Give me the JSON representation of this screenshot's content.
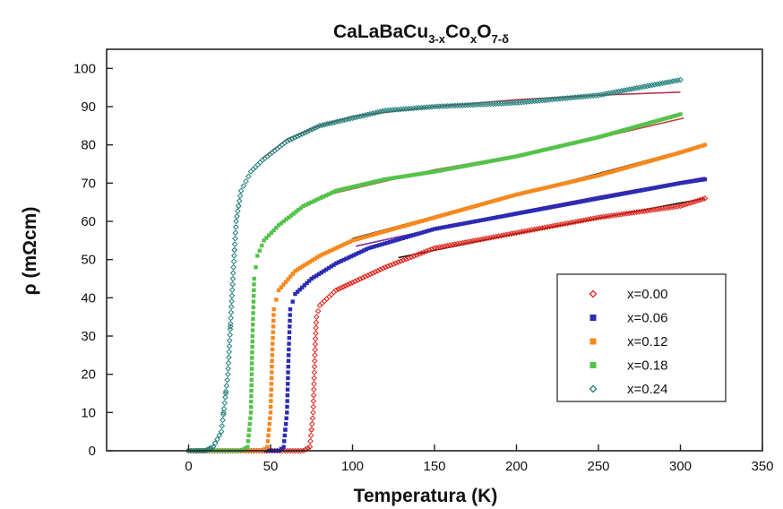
{
  "chart_data": {
    "type": "scatter",
    "title": {
      "base": "CaLaBaCu",
      "sub1": "3-x",
      "mid1": "Co",
      "sub2": "x",
      "mid2": "O",
      "sub3": "7-δ"
    },
    "xlabel": "Temperatura (K)",
    "ylabel": "ρ (mΩcm)",
    "xlim": [
      -50,
      350
    ],
    "ylim": [
      0,
      105
    ],
    "xticks": [
      "0",
      "50",
      "100",
      "150",
      "200",
      "250",
      "300",
      "350"
    ],
    "yticks": [
      "0",
      "10",
      "20",
      "30",
      "40",
      "50",
      "60",
      "70",
      "80",
      "90",
      "100"
    ],
    "grid": false,
    "legend_position": "lower-right",
    "series": [
      {
        "name": "x=0.00",
        "color": "#e0241b",
        "marker": "diamond-small",
        "points": [
          [
            0,
            0
          ],
          [
            70,
            0
          ],
          [
            74,
            1
          ],
          [
            76,
            10
          ],
          [
            77,
            25
          ],
          [
            78,
            35
          ],
          [
            80,
            38
          ],
          [
            90,
            42
          ],
          [
            100,
            44
          ],
          [
            120,
            48
          ],
          [
            150,
            53
          ],
          [
            200,
            57
          ],
          [
            250,
            61
          ],
          [
            300,
            64
          ],
          [
            315,
            66
          ]
        ],
        "fit": {
          "color": "#111111",
          "points": [
            [
              128,
              50.5
            ],
            [
              200,
              56.8
            ],
            [
              250,
              60.8
            ],
            [
              315,
              66
            ]
          ]
        }
      },
      {
        "name": "x=0.06",
        "color": "#2b2bb3",
        "marker": "square",
        "points": [
          [
            0,
            0
          ],
          [
            55,
            0
          ],
          [
            58,
            1
          ],
          [
            60,
            10
          ],
          [
            61,
            25
          ],
          [
            62,
            37
          ],
          [
            65,
            41
          ],
          [
            75,
            45
          ],
          [
            90,
            49
          ],
          [
            110,
            53
          ],
          [
            150,
            58
          ],
          [
            200,
            62
          ],
          [
            250,
            66
          ],
          [
            300,
            70
          ],
          [
            315,
            71
          ]
        ],
        "fit": {
          "color": "#7a2fa3",
          "points": [
            [
              102,
              53.5
            ],
            [
              150,
              58
            ],
            [
              200,
              62.4
            ],
            [
              250,
              66.5
            ],
            [
              315,
              71.5
            ]
          ]
        }
      },
      {
        "name": "x=0.12",
        "color": "#f5881e",
        "marker": "square",
        "points": [
          [
            0,
            0
          ],
          [
            45,
            0
          ],
          [
            48,
            1
          ],
          [
            50,
            10
          ],
          [
            51,
            25
          ],
          [
            52,
            37
          ],
          [
            55,
            42
          ],
          [
            65,
            47
          ],
          [
            80,
            51
          ],
          [
            100,
            55
          ],
          [
            150,
            61
          ],
          [
            200,
            67
          ],
          [
            250,
            72
          ],
          [
            300,
            78
          ],
          [
            315,
            80
          ]
        ],
        "fit": {
          "color": "#111111",
          "points": [
            [
              100,
              55.5
            ],
            [
              150,
              61.3
            ],
            [
              200,
              67
            ],
            [
              250,
              72.5
            ],
            [
              315,
              80
            ]
          ]
        }
      },
      {
        "name": "x=0.18",
        "color": "#55c24a",
        "marker": "square",
        "points": [
          [
            0,
            0
          ],
          [
            32,
            0
          ],
          [
            36,
            1
          ],
          [
            38,
            10
          ],
          [
            39,
            30
          ],
          [
            40,
            45
          ],
          [
            42,
            51
          ],
          [
            46,
            55
          ],
          [
            55,
            59
          ],
          [
            70,
            64
          ],
          [
            90,
            68
          ],
          [
            120,
            71
          ],
          [
            150,
            73
          ],
          [
            200,
            77
          ],
          [
            250,
            82
          ],
          [
            300,
            88
          ]
        ],
        "fit": {
          "color": "#c04040",
          "points": [
            [
              80,
              66.5
            ],
            [
              150,
              73.5
            ],
            [
              200,
              77.2
            ],
            [
              250,
              81.8
            ],
            [
              302,
              87
            ]
          ]
        }
      },
      {
        "name": "x=0.24",
        "color": "#1f7f7a",
        "marker": "diamond-small",
        "points": [
          [
            0,
            0
          ],
          [
            10,
            0
          ],
          [
            15,
            1
          ],
          [
            20,
            5
          ],
          [
            24,
            20
          ],
          [
            27,
            45
          ],
          [
            29,
            60
          ],
          [
            32,
            68
          ],
          [
            38,
            73
          ],
          [
            45,
            76
          ],
          [
            60,
            81
          ],
          [
            80,
            85
          ],
          [
            100,
            87
          ],
          [
            120,
            89
          ],
          [
            150,
            90
          ],
          [
            200,
            91
          ],
          [
            250,
            93
          ],
          [
            300,
            97
          ]
        ],
        "fit": {
          "color": "#b03a4a",
          "points": [
            [
              45,
              76.5
            ],
            [
              60,
              81.5
            ],
            [
              80,
              85
            ],
            [
              100,
              87.5
            ],
            [
              150,
              90
            ],
            [
              200,
              91.8
            ],
            [
              250,
              93
            ],
            [
              300,
              93.8
            ]
          ]
        }
      }
    ]
  }
}
